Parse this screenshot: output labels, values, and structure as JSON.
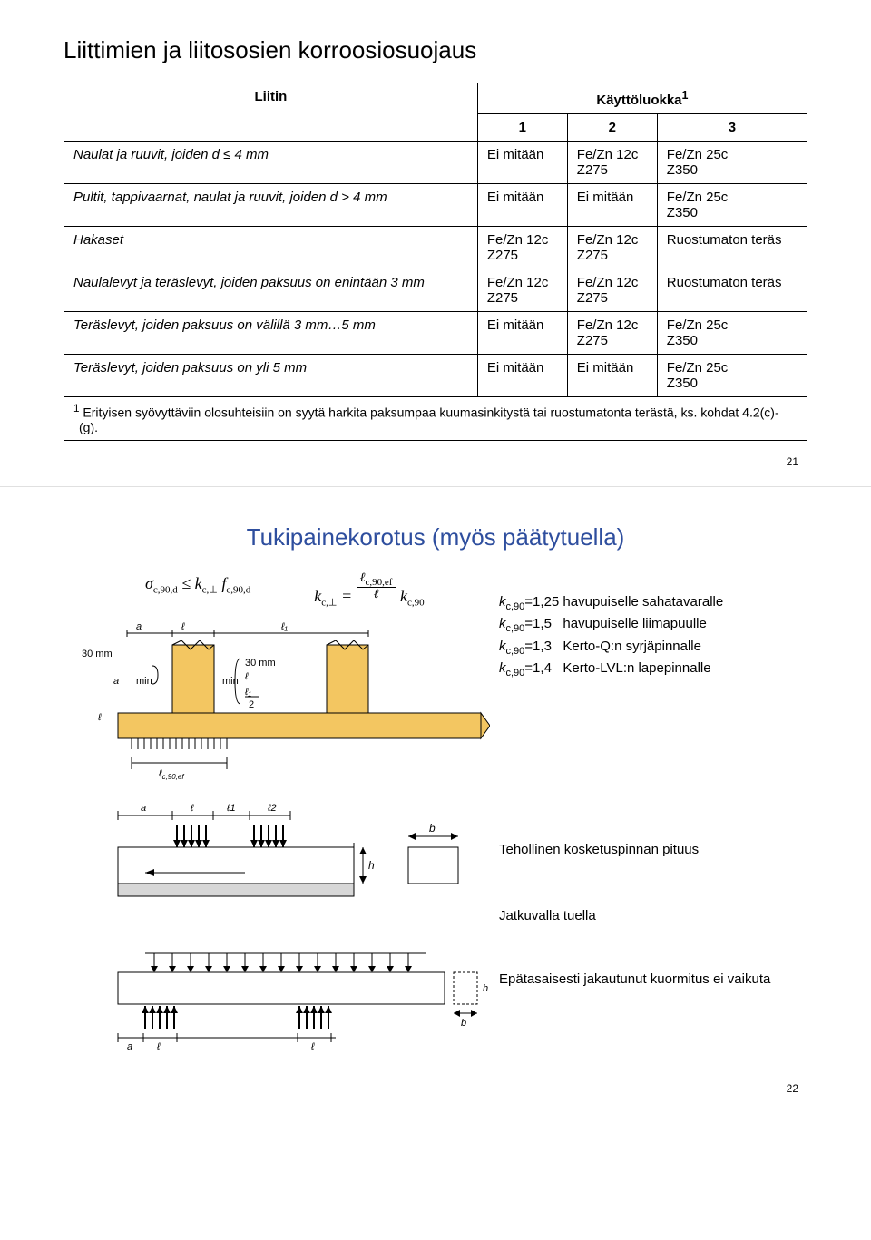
{
  "slide1": {
    "title": "Liittimien ja liitososien korroosiosuojaus",
    "header_liitin": "Liitin",
    "header_kl": "Käyttöluokka",
    "header_kl_sup": "1",
    "cols": [
      "1",
      "2",
      "3"
    ],
    "rows": [
      {
        "label": "Naulat ja ruuvit, joiden d ≤ 4 mm",
        "c1": "Ei mitään",
        "c2": "Fe/Zn 12c\nZ275",
        "c3": "Fe/Zn 25c\nZ350"
      },
      {
        "label": "Pultit, tappivaarnat, naulat ja ruuvit, joiden d > 4 mm",
        "c1": "Ei mitään",
        "c2": "Ei mitään",
        "c3": "Fe/Zn 25c\nZ350"
      },
      {
        "label": "Hakaset",
        "c1": "Fe/Zn 12c\nZ275",
        "c2": "Fe/Zn 12c\nZ275",
        "c3": "Ruostumaton teräs"
      },
      {
        "label": "Naulalevyt ja teräslevyt, joiden paksuus on enintään 3 mm",
        "c1": "Fe/Zn 12c\nZ275",
        "c2": "Fe/Zn 12c\nZ275",
        "c3": "Ruostumaton teräs"
      },
      {
        "label": "Teräslevyt, joiden paksuus on välillä 3 mm…5 mm",
        "c1": "Ei mitään",
        "c2": "Fe/Zn 12c\nZ275",
        "c3": "Fe/Zn 25c\nZ350"
      },
      {
        "label": "Teräslevyt, joiden paksuus on yli 5 mm",
        "c1": "Ei mitään",
        "c2": "Ei mitään",
        "c3": "Fe/Zn 25c\nZ350"
      }
    ],
    "footnote_sup": "1",
    "footnote": "Erityisen syövyttäviin olosuhteisiin on syytä harkita paksumpaa kuumasinkitystä tai ruostumatonta terästä, ks. kohdat 4.2(c)-(g).",
    "pagenum": "21"
  },
  "slide2": {
    "title": "Tukipainekorotus (myös päätytuella)",
    "formula1_html": "<span>σ</span><span class='sub'>c,90,d</span> ≤ <i>k</i><span class='sub'>c,⊥</span> <i>f</i><span class='sub'>c,90,d</span>",
    "formula2_label": "k_c_perp_eq",
    "k_lines": [
      {
        "pre": "k",
        "sub": "c,90",
        "txt": "=1,25 havupuiselle sahatavaralle"
      },
      {
        "pre": "k",
        "sub": "c,90",
        "txt": "=1,5   havupuiselle liimapuulle"
      },
      {
        "pre": "k",
        "sub": "c,90",
        "txt": "=1,3   Kerto-Q:n syrjäpinnalle"
      },
      {
        "pre": "k",
        "sub": "c,90",
        "txt": "=1,4   Kerto-LVL:n lapepinnalle"
      }
    ],
    "label_tehollinen": "Tehollinen kosketuspinnan pituus",
    "label_jatkuvalla": "Jatkuvalla tuella",
    "label_epatas": "Epätasaisesti jakautunut kuormitus ei vaikuta",
    "pagenum": "22",
    "dim_30mm_a": "30 mm",
    "dim_30mm_b": "30 mm",
    "dim_a": "a",
    "dim_l": "ℓ",
    "dim_l1": "ℓ₁",
    "dim_min": "min",
    "dim_l_half": "ℓ₁/2",
    "dim_lcef": "ℓc,90,ef",
    "dim_b": "b",
    "dim_h": "h",
    "colors": {
      "wood": "#f3c661",
      "beam_line": "#000",
      "concrete": "#d7d7d7",
      "dim": "#555"
    }
  }
}
